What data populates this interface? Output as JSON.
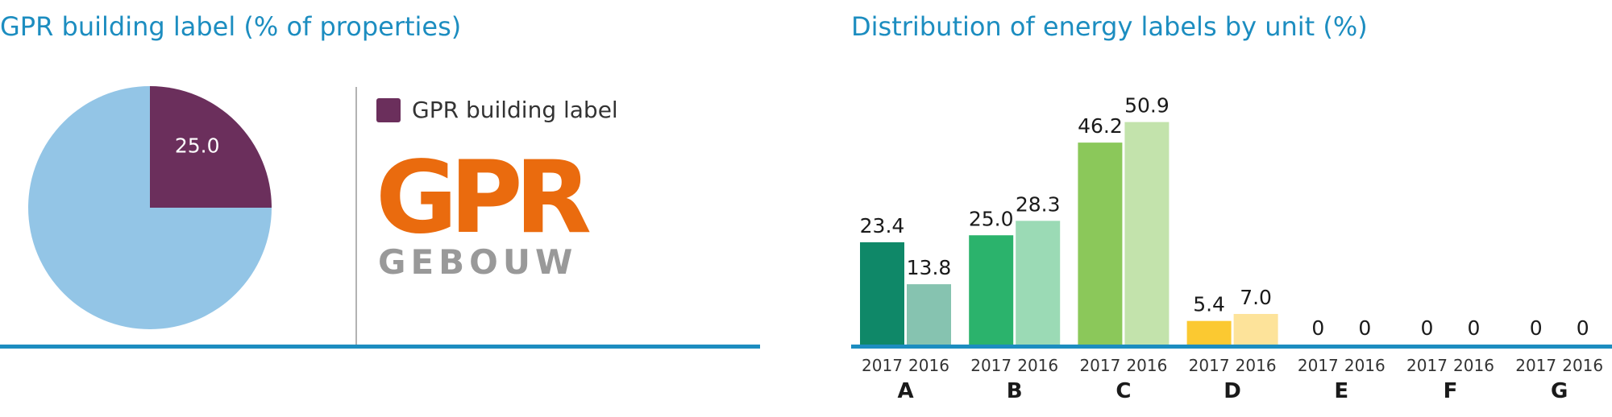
{
  "colors": {
    "accent": "#1c8dc0",
    "divider": "#b3b3b3"
  },
  "chart_data": [
    {
      "type": "pie",
      "title": "GPR building label (% of properties)",
      "slices": [
        {
          "label": "GPR building label",
          "value": 25.0,
          "value_label": "25.0",
          "color": "#6b2f5c"
        },
        {
          "label": "",
          "value": 75.0,
          "value_label": "",
          "color": "#93c5e6"
        }
      ],
      "legend": [
        {
          "label": "GPR building label",
          "color": "#6b2f5c"
        }
      ],
      "logo": {
        "text_top": "GPR",
        "text_bottom": "GEBOUW",
        "color_top": "#ea6b0e",
        "color_bottom": "#999999"
      }
    },
    {
      "type": "bar",
      "title": "Distribution of energy labels by unit (%)",
      "categories": [
        "A",
        "B",
        "C",
        "D",
        "E",
        "F",
        "G"
      ],
      "series": [
        {
          "name": "2017",
          "values": [
            23.4,
            25.0,
            46.2,
            5.4,
            0,
            0,
            0
          ],
          "labels": [
            "23.4",
            "25.0",
            "46.2",
            "5.4",
            "0",
            "0",
            "0"
          ],
          "colors": [
            "#0f8868",
            "#2bb36c",
            "#8bc85a",
            "#fbc931",
            "#fbc931",
            "#fbc931",
            "#fbc931"
          ]
        },
        {
          "name": "2016",
          "values": [
            13.8,
            28.3,
            50.9,
            7.0,
            0,
            0,
            0
          ],
          "labels": [
            "13.8",
            "28.3",
            "50.9",
            "7.0",
            "0",
            "0",
            "0"
          ],
          "colors": [
            "#86c3b0",
            "#9bdab5",
            "#c3e3ac",
            "#fde39a",
            "#fde39a",
            "#fde39a",
            "#fde39a"
          ]
        }
      ],
      "ylim": [
        0,
        60
      ],
      "grid": false,
      "legend": "none"
    }
  ]
}
